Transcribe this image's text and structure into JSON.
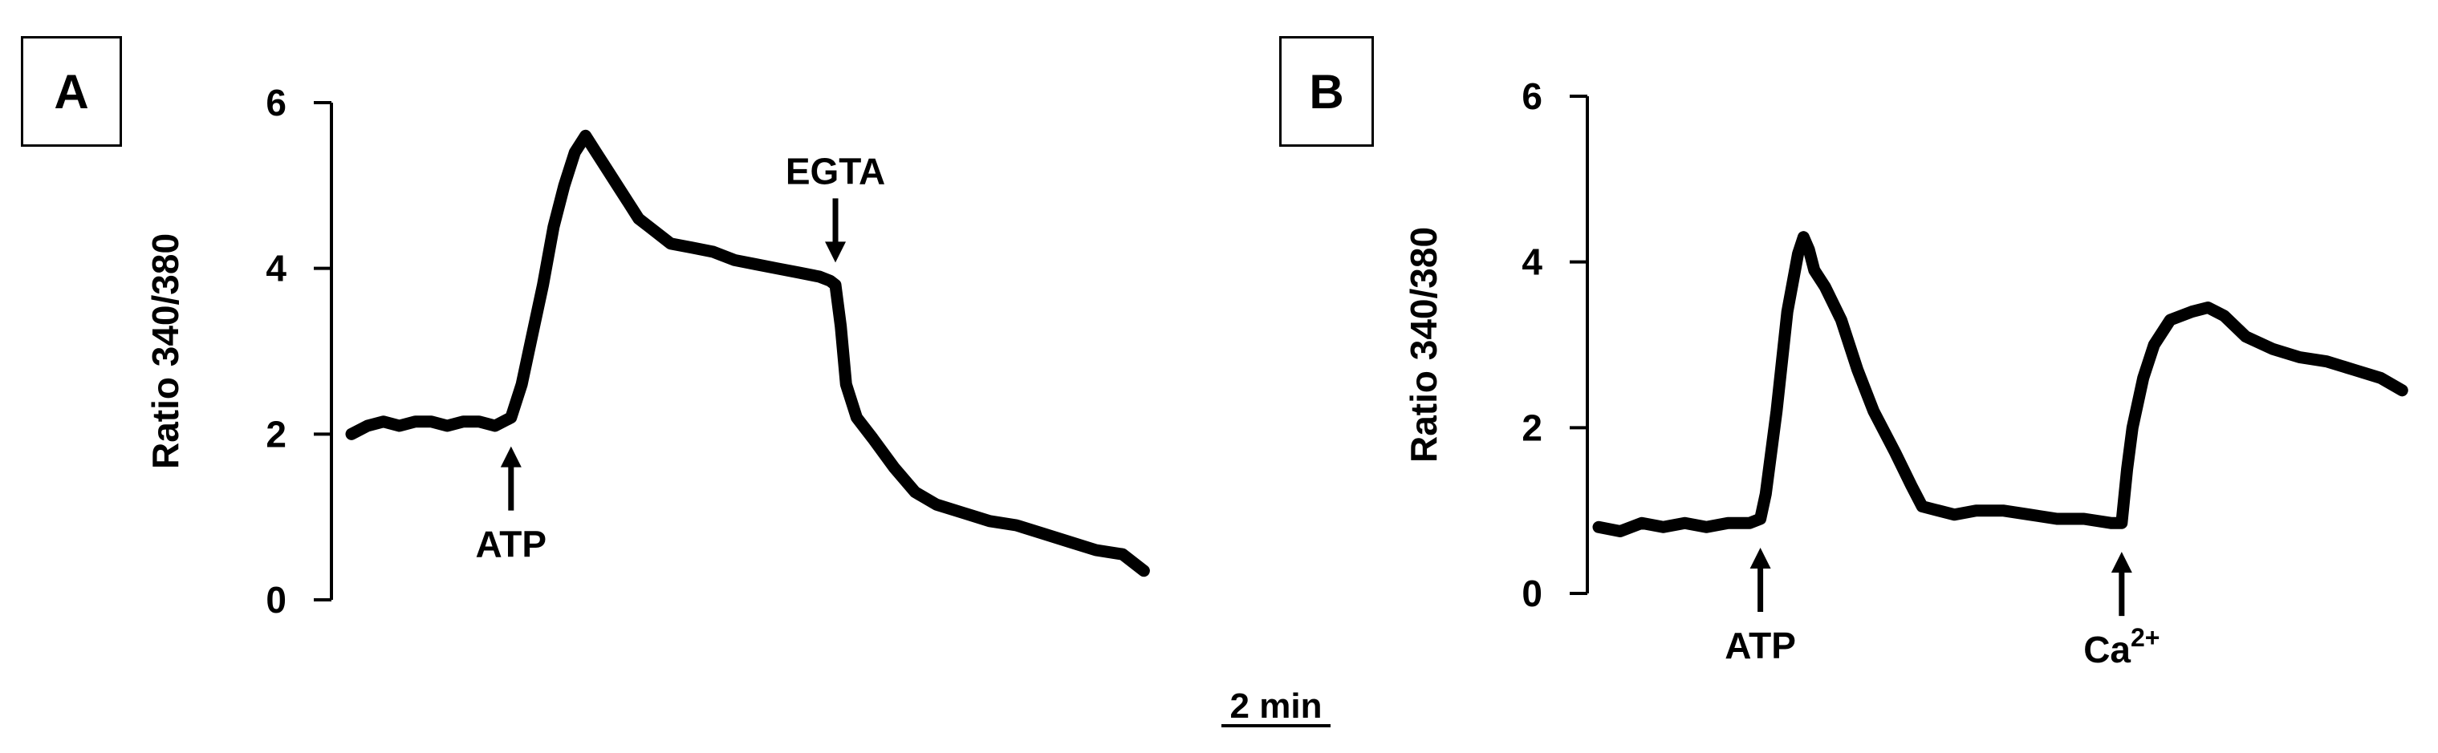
{
  "chart_data": [
    {
      "type": "line",
      "panel_label": "A",
      "ylabel": "Ratio 340/380",
      "yticks": [
        0,
        2,
        4,
        6
      ],
      "ylim": [
        0,
        6
      ],
      "xlim": [
        0,
        15
      ],
      "annotations": [
        {
          "text": "ATP",
          "x": 3.0,
          "direction": "up"
        },
        {
          "text": "EGTA",
          "x": 9.1,
          "direction": "down"
        }
      ],
      "series": [
        {
          "x": [
            0,
            0.3,
            0.6,
            0.9,
            1.2,
            1.5,
            1.8,
            2.1,
            2.4,
            2.7,
            3.0,
            3.2,
            3.4,
            3.6,
            3.8,
            4.0,
            4.2,
            4.4,
            4.6,
            4.8,
            5.0,
            5.2,
            5.4,
            5.6,
            6.0,
            6.4,
            6.8,
            7.2,
            7.6,
            8.0,
            8.4,
            8.8,
            9.0,
            9.1,
            9.2,
            9.3,
            9.5,
            9.8,
            10.2,
            10.6,
            11.0,
            11.5,
            12.0,
            12.5,
            13.0,
            13.5,
            14.0,
            14.5,
            14.9
          ],
          "values": [
            2.0,
            2.1,
            2.15,
            2.1,
            2.15,
            2.15,
            2.1,
            2.15,
            2.15,
            2.1,
            2.2,
            2.6,
            3.2,
            3.8,
            4.5,
            5.0,
            5.4,
            5.6,
            5.4,
            5.2,
            5.0,
            4.8,
            4.6,
            4.5,
            4.3,
            4.25,
            4.2,
            4.1,
            4.05,
            4.0,
            3.95,
            3.9,
            3.85,
            3.8,
            3.3,
            2.6,
            2.2,
            1.95,
            1.6,
            1.3,
            1.15,
            1.05,
            0.95,
            0.9,
            0.8,
            0.7,
            0.6,
            0.55,
            0.35
          ]
        }
      ]
    },
    {
      "type": "line",
      "panel_label": "B",
      "ylabel": "Ratio 340/380",
      "yticks": [
        0,
        2,
        4,
        6
      ],
      "ylim": [
        0,
        6
      ],
      "xlim": [
        0,
        15
      ],
      "annotations": [
        {
          "text": "ATP",
          "x": 3.0,
          "direction": "up"
        },
        {
          "text": "Ca",
          "superscript": "2+",
          "x": 9.7,
          "direction": "up"
        }
      ],
      "series": [
        {
          "x": [
            0,
            0.4,
            0.8,
            1.2,
            1.6,
            2.0,
            2.4,
            2.8,
            3.0,
            3.1,
            3.3,
            3.5,
            3.7,
            3.8,
            3.9,
            4.0,
            4.2,
            4.5,
            4.8,
            5.1,
            5.5,
            5.8,
            6.0,
            6.3,
            6.6,
            7.0,
            7.5,
            8.0,
            8.5,
            9.0,
            9.5,
            9.7,
            9.8,
            9.9,
            10.1,
            10.3,
            10.6,
            11.0,
            11.3,
            11.6,
            12.0,
            12.5,
            13.0,
            13.5,
            14.0,
            14.5,
            14.9
          ],
          "values": [
            0.8,
            0.75,
            0.85,
            0.8,
            0.85,
            0.8,
            0.85,
            0.85,
            0.9,
            1.2,
            2.2,
            3.4,
            4.1,
            4.3,
            4.15,
            3.9,
            3.7,
            3.3,
            2.7,
            2.2,
            1.7,
            1.3,
            1.05,
            1.0,
            0.95,
            1.0,
            1.0,
            0.95,
            0.9,
            0.9,
            0.85,
            0.85,
            1.5,
            2.0,
            2.6,
            3.0,
            3.3,
            3.4,
            3.45,
            3.35,
            3.1,
            2.95,
            2.85,
            2.8,
            2.7,
            2.6,
            2.45
          ]
        }
      ]
    }
  ],
  "scale_bar": {
    "label": "2 min",
    "minutes": 2
  }
}
